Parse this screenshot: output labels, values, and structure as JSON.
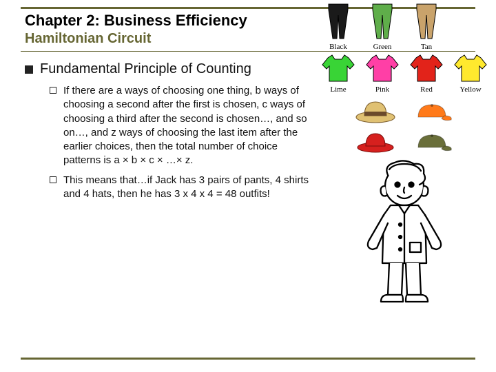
{
  "accent_color": "#666633",
  "header": {
    "chapter": "Chapter 2:  Business Efficiency",
    "subtitle": "Hamiltonian Circuit"
  },
  "bullet1": "Fundamental Principle of Counting",
  "sub1": "If there are a ways of choosing one thing, b ways of choosing a second after the first is chosen, c ways of choosing a third after the second is chosen…, and so on…, and z ways of choosing the last item after the earlier choices, then the total number of choice patterns is a × b × c × …× z.",
  "sub2": "This means that…if Jack has 3 pairs of pants, 4 shirts and 4 hats, then he has 3 x 4 x 4 = 48 outfits!",
  "clothes": {
    "pants": [
      {
        "label": "Black",
        "color": "#1a1a1a"
      },
      {
        "label": "Green",
        "color": "#5fae4a"
      },
      {
        "label": "Tan",
        "color": "#c9a36b"
      }
    ],
    "shirts": [
      {
        "label": "Lime",
        "color": "#39d436"
      },
      {
        "label": "Pink",
        "color": "#ff3fa6"
      },
      {
        "label": "Red",
        "color": "#e2231a"
      },
      {
        "label": "Yellow",
        "color": "#ffe92e"
      }
    ],
    "hats": [
      {
        "name": "straw-hat",
        "fill": "#e0c173",
        "band": "#6b4a2b"
      },
      {
        "name": "orange-cap",
        "fill": "#ff7a1a"
      },
      {
        "name": "red-hat",
        "fill": "#d6201e"
      },
      {
        "name": "olive-cap",
        "fill": "#6a6f3a"
      }
    ]
  }
}
